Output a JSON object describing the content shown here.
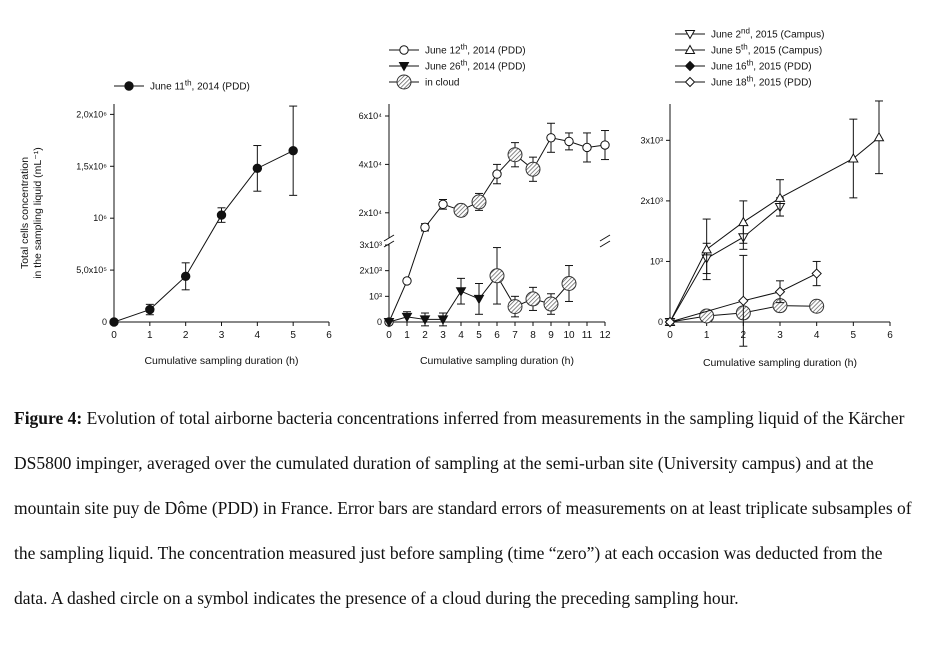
{
  "caption": {
    "label": "Figure 4:",
    "text": " Evolution of total airborne bacteria concentrations inferred from measurements in the sampling liquid of the Kärcher DS5800 impinger, averaged over the cumulated duration of sampling at the semi-urban site (University campus) and at the mountain site puy de Dôme (PDD) in France. Error bars are standard errors of measurements on at least triplicate subsamples of the sampling liquid. The concentration measured just before sampling (time “zero”) at each occasion was deducted from the data. A dashed circle on a symbol indicates the presence of a cloud during the preceding sampling hour."
  },
  "shared": {
    "ylabel_line1": "Total cells concentration",
    "ylabel_line2": "in the sampling liquid (mL⁻¹)",
    "xlabel": "Cumulative sampling duration (h)"
  },
  "chart_data": [
    {
      "type": "line",
      "panel": "left",
      "xlabel": "Cumulative sampling duration (h)",
      "ylabel": "Total cells concentration in the sampling liquid (mL⁻¹)",
      "xlim": [
        0,
        6
      ],
      "ylim": [
        0,
        2100000
      ],
      "x_ticks": [
        0,
        1,
        2,
        3,
        4,
        5,
        6
      ],
      "y_ticks": [
        {
          "value": 0,
          "label": "0"
        },
        {
          "value": 500000,
          "label": "5,0x10⁵"
        },
        {
          "value": 1000000,
          "label": "10⁶"
        },
        {
          "value": 1500000,
          "label": "1,5x10⁶"
        },
        {
          "value": 2000000,
          "label": "2,0x10⁶"
        }
      ],
      "legend": [
        {
          "name": "June 11th, 2014 (PDD)",
          "marker": "filled-circle"
        }
      ],
      "series": [
        {
          "name": "June 11th, 2014 (PDD)",
          "marker": "filled-circle",
          "x": [
            0,
            1,
            2,
            3,
            4,
            5
          ],
          "y": [
            0,
            120000,
            440000,
            1030000,
            1480000,
            1650000
          ],
          "err": [
            0,
            50000,
            130000,
            70000,
            220000,
            430000
          ],
          "cloud": [
            false,
            false,
            false,
            false,
            false,
            false
          ]
        }
      ]
    },
    {
      "type": "line",
      "panel": "middle",
      "axis_break": true,
      "xlabel": "Cumulative sampling duration (h)",
      "xlim": [
        0,
        12
      ],
      "x_ticks": [
        0,
        1,
        2,
        3,
        4,
        5,
        6,
        7,
        8,
        9,
        10,
        11,
        12
      ],
      "ylim_lower": [
        0,
        3000
      ],
      "ylim_upper": [
        10000,
        60000
      ],
      "y_ticks": [
        {
          "value": 0,
          "label": "0"
        },
        {
          "value": 1000,
          "label": "10³"
        },
        {
          "value": 2000,
          "label": "2x10³"
        },
        {
          "value": 3000,
          "label": "3x10³"
        },
        {
          "value": 20000,
          "label": "2x10⁴"
        },
        {
          "value": 40000,
          "label": "4x10⁴"
        },
        {
          "value": 60000,
          "label": "6x10⁴"
        }
      ],
      "legend": [
        {
          "name": "June 12th, 2014 (PDD)",
          "marker": "open-circle"
        },
        {
          "name": "June 26th, 2014 (PDD)",
          "marker": "filled-triangle-down"
        },
        {
          "name": "in cloud",
          "marker": "hatched-circle"
        }
      ],
      "series": [
        {
          "name": "June 12th, 2014 (PDD)",
          "marker": "open-circle",
          "x": [
            0,
            1,
            2,
            3,
            4,
            5,
            6,
            7,
            8,
            9,
            10,
            11,
            12
          ],
          "y": [
            0,
            1600,
            14000,
            23500,
            21000,
            24500,
            36000,
            44000,
            38000,
            51000,
            49500,
            47000,
            48000
          ],
          "err": [
            0,
            0,
            1500,
            2000,
            2500,
            3500,
            4000,
            5000,
            5000,
            6000,
            3500,
            6000,
            6000
          ],
          "cloud": [
            false,
            false,
            false,
            false,
            true,
            true,
            false,
            true,
            true,
            false,
            false,
            false,
            false
          ]
        },
        {
          "name": "June 26th, 2014 (PDD)",
          "marker": "filled-triangle-down",
          "x": [
            0,
            1,
            2,
            3,
            4,
            5,
            6,
            7,
            8,
            9,
            10
          ],
          "y": [
            0,
            200,
            100,
            100,
            1200,
            900,
            1800,
            600,
            900,
            700,
            1500
          ],
          "err": [
            0,
            200,
            250,
            250,
            500,
            600,
            1100,
            400,
            450,
            400,
            700
          ],
          "cloud": [
            false,
            false,
            false,
            false,
            false,
            false,
            true,
            true,
            true,
            true,
            true
          ]
        }
      ]
    },
    {
      "type": "line",
      "panel": "right",
      "xlabel": "Cumulative sampling duration (h)",
      "xlim": [
        0,
        6
      ],
      "ylim": [
        0,
        3600
      ],
      "x_ticks": [
        0,
        1,
        2,
        3,
        4,
        5,
        6
      ],
      "y_ticks": [
        {
          "value": 0,
          "label": "0"
        },
        {
          "value": 1000,
          "label": "10³"
        },
        {
          "value": 2000,
          "label": "2x10³"
        },
        {
          "value": 3000,
          "label": "3x10³"
        }
      ],
      "legend": [
        {
          "name": "June 2nd, 2015 (Campus)",
          "marker": "open-triangle-down"
        },
        {
          "name": "June 5th, 2015 (Campus)",
          "marker": "open-triangle-up"
        },
        {
          "name": "June 16th, 2015 (PDD)",
          "marker": "filled-diamond"
        },
        {
          "name": "June 18th, 2015 (PDD)",
          "marker": "open-diamond"
        }
      ],
      "series": [
        {
          "name": "June 2nd, 2015 (Campus)",
          "marker": "open-triangle-down",
          "x": [
            0,
            1,
            2,
            3
          ],
          "y": [
            0,
            1050,
            1400,
            1900
          ],
          "err": [
            0,
            250,
            200,
            150
          ],
          "cloud": [
            false,
            false,
            false,
            false
          ]
        },
        {
          "name": "June 5th, 2015 (Campus)",
          "marker": "open-triangle-up",
          "x": [
            0,
            1,
            2,
            3,
            5,
            5.7
          ],
          "y": [
            0,
            1200,
            1650,
            2050,
            2700,
            3050
          ],
          "err": [
            0,
            500,
            350,
            300,
            650,
            600
          ],
          "cloud": [
            false,
            false,
            false,
            false,
            false,
            false
          ]
        },
        {
          "name": "June 16th, 2015 (PDD)",
          "marker": "filled-diamond",
          "x": [
            0,
            1,
            2,
            3,
            4
          ],
          "y": [
            0,
            100,
            150,
            270,
            260
          ],
          "err": [
            0,
            60,
            80,
            100,
            60
          ],
          "cloud": [
            false,
            true,
            true,
            true,
            true
          ]
        },
        {
          "name": "June 18th, 2015 (PDD)",
          "marker": "open-diamond",
          "x": [
            0,
            2,
            3,
            4
          ],
          "y": [
            0,
            350,
            500,
            800
          ],
          "err": [
            0,
            750,
            180,
            200
          ],
          "cloud": [
            false,
            false,
            false,
            false
          ]
        }
      ]
    }
  ]
}
